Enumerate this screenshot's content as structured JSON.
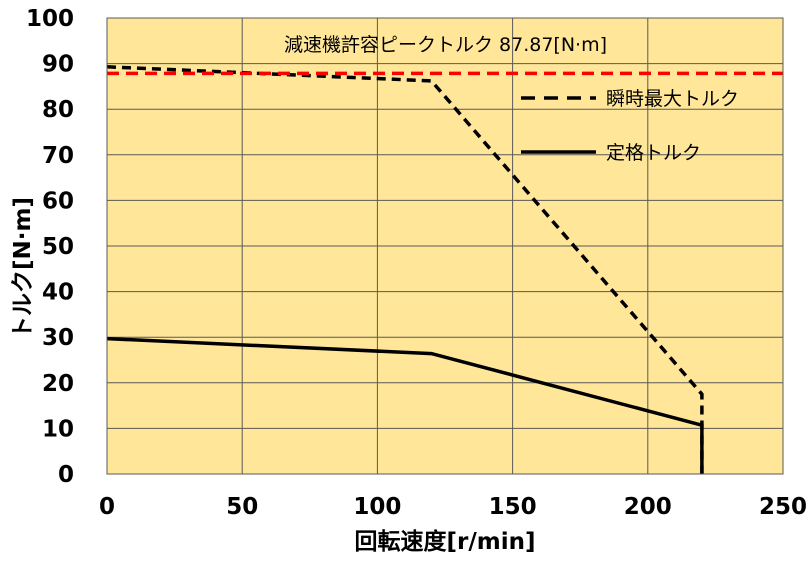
{
  "chart_data": {
    "type": "line",
    "title": "",
    "xlabel": "回転速度[r/min]",
    "ylabel": "トルク[N·m]",
    "xlim": [
      0,
      250
    ],
    "ylim": [
      0,
      100
    ],
    "xticks": [
      0,
      50,
      100,
      150,
      200,
      250
    ],
    "yticks": [
      0,
      10,
      20,
      30,
      40,
      50,
      60,
      70,
      80,
      90,
      100
    ],
    "grid": true,
    "plot_background": "#FFE699",
    "annotation": "減速機許容ピークトルク 87.87[N·m]",
    "reference_line": {
      "y": 87.87,
      "color": "#FF0000",
      "style": "dashed"
    },
    "legend_position": "top-right",
    "series": [
      {
        "name": "瞬時最大トルク",
        "style": "dashed",
        "color": "#000000",
        "points": [
          [
            0,
            89.3
          ],
          [
            120,
            86.2
          ],
          [
            220,
            17.5
          ],
          [
            220,
            0
          ]
        ]
      },
      {
        "name": "定格トルク",
        "style": "solid",
        "color": "#000000",
        "points": [
          [
            0,
            29.7
          ],
          [
            120,
            26.4
          ],
          [
            220,
            10.7
          ],
          [
            220,
            0
          ]
        ]
      }
    ]
  }
}
